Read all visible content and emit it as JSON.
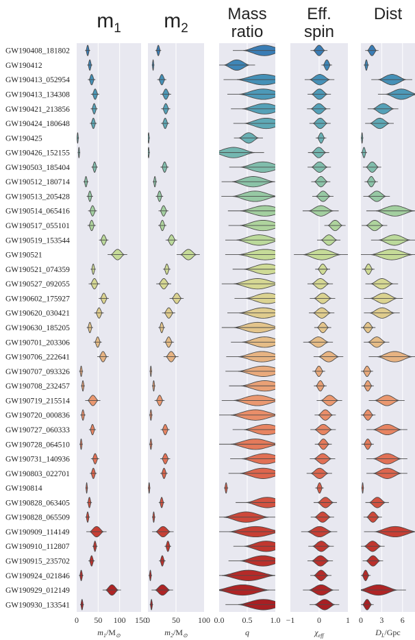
{
  "chart_data": {
    "type": "violin",
    "events": [
      "GW190408_181802",
      "GW190412",
      "GW190413_052954",
      "GW190413_134308",
      "GW190421_213856",
      "GW190424_180648",
      "GW190425",
      "GW190426_152155",
      "GW190503_185404",
      "GW190512_180714",
      "GW190513_205428",
      "GW190514_065416",
      "GW190517_055101",
      "GW190519_153544",
      "GW190521",
      "GW190521_074359",
      "GW190527_092055",
      "GW190602_175927",
      "GW190620_030421",
      "GW190630_185205",
      "GW190701_203306",
      "GW190706_222641",
      "GW190707_093326",
      "GW190708_232457",
      "GW190719_215514",
      "GW190720_000836",
      "GW190727_060333",
      "GW190728_064510",
      "GW190731_140936",
      "GW190803_022701",
      "GW190814",
      "GW190828_063405",
      "GW190828_065509",
      "GW190909_114149",
      "GW190910_112807",
      "GW190915_235702",
      "GW190924_021846",
      "GW190929_012149",
      "GW190930_133541"
    ],
    "colors": [
      "#3a7db5",
      "#3e86b7",
      "#4590b7",
      "#4d99b8",
      "#55a1b8",
      "#5fa9b6",
      "#69b0b4",
      "#74b7b1",
      "#80bdac",
      "#8bc3a8",
      "#97c9a4",
      "#a3cfa0",
      "#afd49d",
      "#bbd99b",
      "#c6db98",
      "#cfdb96",
      "#d6d894",
      "#dbd391",
      "#dfcc8e",
      "#e3c48b",
      "#e5bc87",
      "#e7b382",
      "#e9aa7c",
      "#eaa176",
      "#ea9870",
      "#e98e69",
      "#e78462",
      "#e47a5b",
      "#e17055",
      "#dd664e",
      "#d85c47",
      "#d35241",
      "#cd483a",
      "#c73f34",
      "#c1372f",
      "#bb302b",
      "#b52a28",
      "#ae2425",
      "#a81f23"
    ],
    "panels": [
      {
        "title_main": "m",
        "title_sub": "1",
        "xlabel_main": "m",
        "xlabel_sub": "1",
        "xlabel_tail": "/M",
        "xlabel_tail_sub": "⊙",
        "xlim": [
          0,
          150
        ],
        "ticks": [
          0,
          50,
          100,
          150
        ],
        "tick_labels": [
          "0",
          "50",
          "100",
          "150"
        ],
        "grid": true,
        "medians": [
          25,
          30,
          34,
          42,
          40,
          38,
          2,
          5,
          41,
          21,
          30,
          36,
          34,
          62,
          93,
          38,
          40,
          62,
          51,
          30,
          48,
          60,
          10,
          14,
          36,
          14,
          36,
          10,
          42,
          38,
          23,
          29,
          25,
          44,
          42,
          34,
          10,
          80,
          12
        ],
        "widths": [
          8,
          8,
          12,
          13,
          11,
          11,
          3,
          3,
          10,
          8,
          10,
          14,
          13,
          15,
          31,
          8,
          18,
          16,
          15,
          10,
          13,
          18,
          6,
          6,
          24,
          8,
          11,
          5,
          13,
          11,
          2,
          8,
          7,
          32,
          8,
          10,
          7,
          29,
          6
        ]
      },
      {
        "title_main": "m",
        "title_sub": "2",
        "xlabel_main": "m",
        "xlabel_sub": "2",
        "xlabel_tail": "/M",
        "xlabel_tail_sub": "⊙",
        "xlim": [
          0,
          100
        ],
        "ticks": [
          0,
          50,
          100
        ],
        "tick_labels": [
          "0",
          "50",
          "100"
        ],
        "grid": true,
        "medians": [
          18,
          9,
          24,
          31,
          31,
          30,
          1,
          1,
          29,
          12,
          20,
          27,
          25,
          41,
          70,
          33,
          27,
          50,
          36,
          24,
          36,
          40,
          5,
          10,
          20,
          5,
          30,
          5,
          30,
          28,
          2,
          24,
          10,
          25,
          35,
          25,
          4,
          24,
          6
        ],
        "widths": [
          7,
          3,
          11,
          13,
          11,
          10,
          2,
          2,
          10,
          5,
          9,
          12,
          10,
          14,
          28,
          9,
          18,
          17,
          16,
          8,
          13,
          18,
          3,
          4,
          12,
          4,
          11,
          4,
          12,
          9,
          1,
          7,
          4,
          26,
          8,
          8,
          4,
          26,
          4
        ]
      },
      {
        "title_main": "Mass",
        "title_line2": "ratio",
        "xlabel_main": "q",
        "xlim": [
          0,
          1
        ],
        "ticks": [
          0,
          0.5,
          1
        ],
        "tick_labels": [
          "0.0",
          "0.5",
          "1.0"
        ],
        "grid": true,
        "medians": [
          0.75,
          0.28,
          0.72,
          0.72,
          0.75,
          0.78,
          0.5,
          0.2,
          0.72,
          0.55,
          0.58,
          0.75,
          0.72,
          0.65,
          0.75,
          0.78,
          0.62,
          0.8,
          0.72,
          0.62,
          0.75,
          0.7,
          0.72,
          0.75,
          0.62,
          0.58,
          0.78,
          0.58,
          0.75,
          0.72,
          0.12,
          0.8,
          0.42,
          0.58,
          0.78,
          0.72,
          0.45,
          0.35,
          0.72
        ],
        "widths": [
          0.75,
          0.45,
          0.95,
          0.85,
          0.8,
          0.78,
          0.35,
          0.75,
          0.8,
          0.75,
          0.8,
          0.88,
          0.82,
          0.8,
          0.95,
          0.8,
          0.85,
          0.78,
          0.85,
          0.85,
          0.8,
          0.85,
          0.9,
          0.85,
          0.85,
          0.88,
          0.8,
          0.88,
          0.82,
          0.82,
          0.05,
          0.75,
          0.8,
          0.95,
          0.78,
          0.82,
          0.95,
          0.95,
          0.9
        ]
      },
      {
        "title_main": "Eff.",
        "title_line2": "spin",
        "xlabel_main": "χ",
        "xlabel_sub": "eff",
        "xlim": [
          -1,
          1
        ],
        "ticks": [
          -1,
          0,
          1
        ],
        "tick_labels": [
          "−1",
          "0",
          "1"
        ],
        "grid": true,
        "medians": [
          -0.03,
          0.25,
          -0.03,
          -0.03,
          -0.05,
          0.0,
          0.05,
          -0.05,
          -0.03,
          0.03,
          0.1,
          0.0,
          0.52,
          0.3,
          0.0,
          0.1,
          0.0,
          0.08,
          0.05,
          0.1,
          -0.08,
          0.28,
          -0.03,
          0.02,
          0.32,
          0.18,
          0.1,
          0.12,
          0.08,
          -0.03,
          0.0,
          0.18,
          0.08,
          -0.05,
          0.03,
          0.0,
          0.03,
          0.01,
          0.14
        ],
        "widths": [
          0.4,
          0.25,
          0.7,
          0.55,
          0.55,
          0.5,
          0.25,
          0.5,
          0.55,
          0.45,
          0.5,
          0.85,
          0.5,
          0.55,
          1.3,
          0.35,
          0.6,
          0.6,
          0.6,
          0.4,
          0.7,
          0.7,
          0.3,
          0.3,
          0.6,
          0.5,
          0.6,
          0.4,
          0.6,
          0.6,
          0.2,
          0.55,
          0.55,
          0.85,
          0.6,
          0.6,
          0.5,
          0.85,
          0.7
        ]
      },
      {
        "title_main": "Dist",
        "xlabel_main": "D",
        "xlabel_sub": "L",
        "xlabel_tail": "/Gpc",
        "xlim": [
          0,
          7.8
        ],
        "ticks": [
          0,
          3,
          6
        ],
        "tick_labels": [
          "0",
          "3",
          "6"
        ],
        "grid": true,
        "medians": [
          1.5,
          0.75,
          4.2,
          5.5,
          3.0,
          2.5,
          0.15,
          0.4,
          1.5,
          1.4,
          2.1,
          4.5,
          1.8,
          4.5,
          4.0,
          1.0,
          2.8,
          3.0,
          2.8,
          0.9,
          2.1,
          4.5,
          0.8,
          0.9,
          3.5,
          0.9,
          3.5,
          0.9,
          3.5,
          3.5,
          0.24,
          2.2,
          1.6,
          4.5,
          1.5,
          1.6,
          0.6,
          2.1,
          0.8
        ],
        "widths": [
          1.3,
          0.5,
          4.0,
          4.5,
          3.0,
          2.8,
          0.2,
          0.6,
          1.8,
          1.3,
          2.6,
          5.5,
          2.5,
          4.5,
          6.0,
          1.2,
          3.2,
          3.8,
          3.5,
          1.5,
          2.5,
          5.0,
          1.2,
          1.2,
          3.5,
          1.5,
          4.0,
          1.2,
          4.0,
          4.0,
          0.15,
          2.3,
          1.8,
          6.0,
          2.4,
          2.0,
          1.0,
          5.5,
          1.3
        ]
      }
    ]
  }
}
